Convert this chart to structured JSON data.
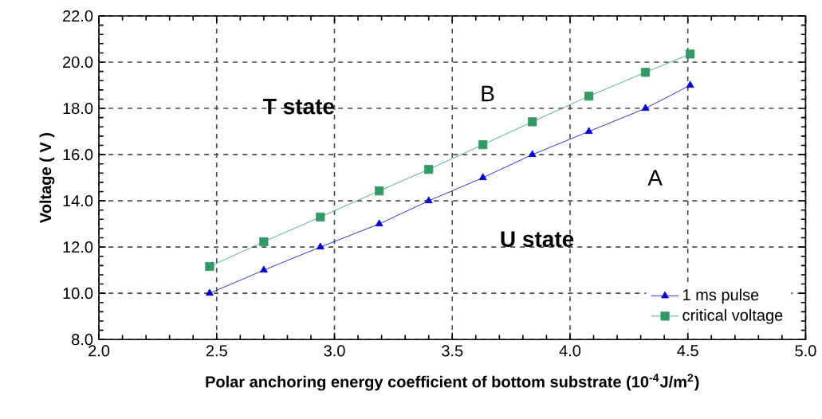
{
  "chart_data": {
    "type": "line",
    "xlabel": "Polar anchoring energy coefficient of bottom substrate (10$^{-4}$J/m$^{2}$)",
    "ylabel": "Voltage ( V )",
    "x": [
      2.47,
      2.7,
      2.94,
      3.19,
      3.4,
      3.63,
      3.84,
      4.08,
      4.32,
      4.51
    ],
    "series": [
      {
        "name": "1 ms pulse",
        "color": "#0000cc",
        "marker": "triangle",
        "values": [
          10,
          11,
          12,
          13,
          14,
          15,
          16,
          17,
          18,
          19
        ]
      },
      {
        "name": "critical voltage",
        "color": "#339966",
        "marker": "square",
        "values": [
          11.16,
          12.23,
          13.3,
          14.43,
          15.36,
          16.43,
          17.42,
          18.53,
          19.56,
          20.35
        ]
      }
    ],
    "xlim": [
      2.0,
      5.0
    ],
    "ylim": [
      8.0,
      22.0
    ],
    "xticks": [
      {
        "value": 2.0,
        "label": "2.0"
      },
      {
        "value": 2.5,
        "label": "2.5"
      },
      {
        "value": 3.0,
        "label": "3.0"
      },
      {
        "value": 3.5,
        "label": "3.5"
      },
      {
        "value": 4.0,
        "label": "4.0"
      },
      {
        "value": 4.5,
        "label": "4.5"
      },
      {
        "value": 5.0,
        "label": "5.0"
      }
    ],
    "yticks": [
      {
        "value": 8.0,
        "label": "8.0"
      },
      {
        "value": 10.0,
        "label": "10.0"
      },
      {
        "value": 12.0,
        "label": "12.0"
      },
      {
        "value": 14.0,
        "label": "14.0"
      },
      {
        "value": 16.0,
        "label": "16.0"
      },
      {
        "value": 18.0,
        "label": "18.0"
      },
      {
        "value": 20.0,
        "label": "20.0"
      },
      {
        "value": 22.0,
        "label": "22.0"
      }
    ],
    "grid": true,
    "legend": "bottom right",
    "line_style": "solid",
    "annotations": [
      "T state",
      "B",
      "A",
      "U state"
    ]
  }
}
